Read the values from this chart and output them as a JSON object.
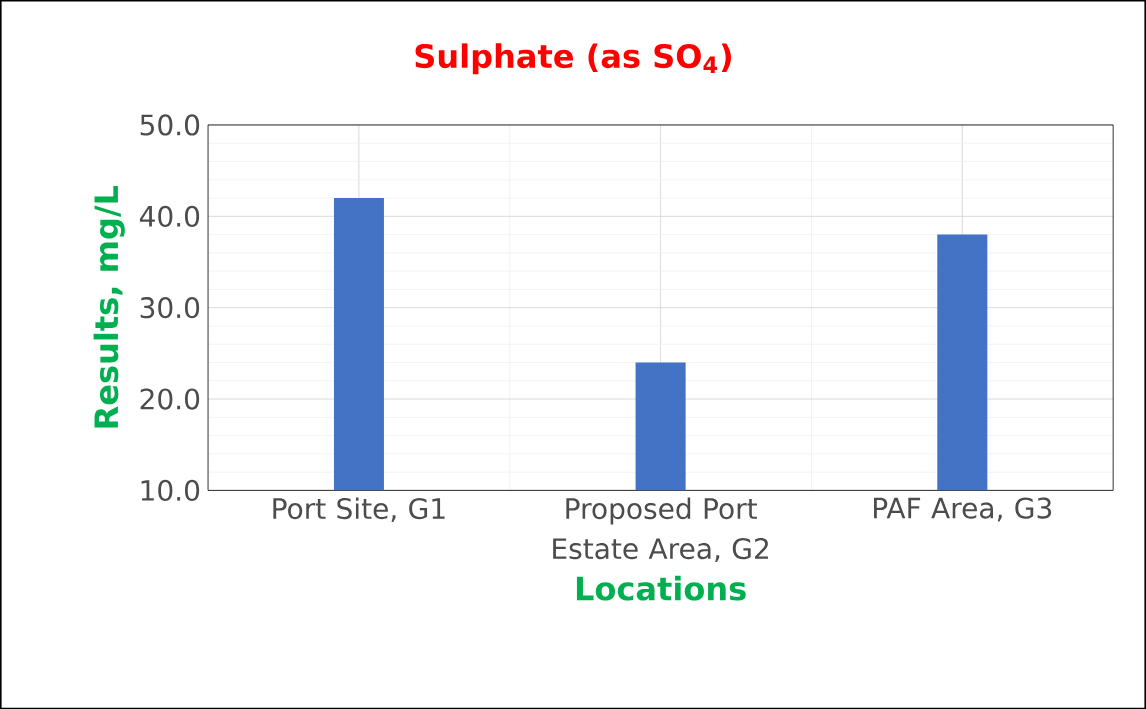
{
  "chart_data": {
    "type": "bar",
    "title": "Sulphate (as SO$_{4}$)",
    "xlabel": "Locations",
    "ylabel": "Results, mg/L",
    "categories": [
      "Port Site, G1",
      "Proposed Port Estate Area, G2",
      "PAF Area, G3"
    ],
    "values": [
      42,
      24,
      38
    ],
    "color": "#4472c4",
    "ylim": [
      10,
      50
    ],
    "yticks": [
      {
        "value": 10,
        "label": "10.0"
      },
      {
        "value": 20,
        "label": "20.0"
      },
      {
        "value": 30,
        "label": "30.0"
      },
      {
        "value": 40,
        "label": "40.0"
      },
      {
        "value": 50,
        "label": "50.0"
      }
    ],
    "grid": true
  }
}
